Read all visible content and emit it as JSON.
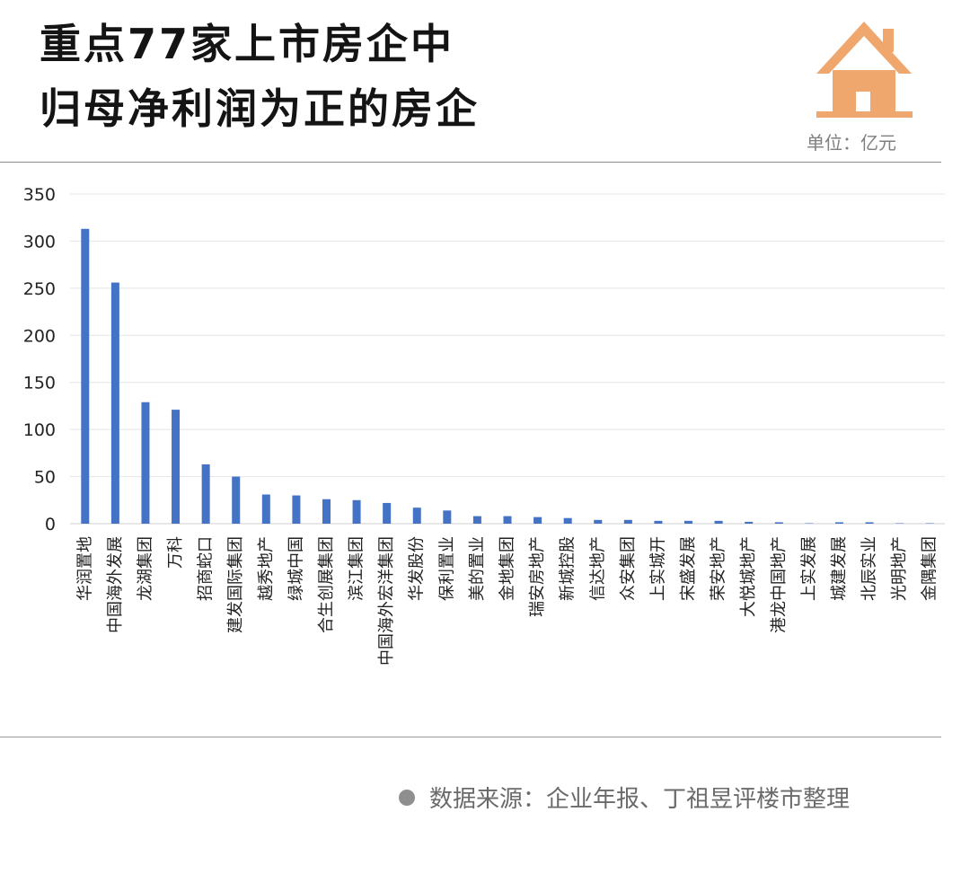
{
  "title": {
    "line1": "重点77家上市房企中",
    "line2": "归母净利润为正的房企"
  },
  "unit_label": "单位：亿元",
  "source": "数据来源：企业年报、丁祖昱评楼市整理",
  "logo": {
    "icon": "house-icon",
    "color": "#f0a76d"
  },
  "chart_data": {
    "type": "bar",
    "title": "",
    "xlabel": "",
    "ylabel": "",
    "ylim": [
      0,
      350
    ],
    "yticks": [
      0,
      50,
      100,
      150,
      200,
      250,
      300,
      350
    ],
    "grid": true,
    "legend": "none",
    "bar_color": "#4472c4",
    "categories": [
      "华润置地",
      "中国海外发展",
      "龙湖集团",
      "万科",
      "招商蛇口",
      "建发国际集团",
      "越秀地产",
      "绿城中国",
      "合生创展集团",
      "滨江集团",
      "中国海外宏洋集团",
      "华发股份",
      "保利置业",
      "美的置业",
      "金地集团",
      "瑞安房地产",
      "新城控股",
      "信达地产",
      "众安集团",
      "上实城开",
      "宋盛发展",
      "荣安地产",
      "大悦城地产",
      "港龙中国地产",
      "上实发展",
      "城建发展",
      "北辰实业",
      "光明地产",
      "金隅集团"
    ],
    "values": [
      313,
      256,
      129,
      121,
      63,
      50,
      31,
      30,
      26,
      25,
      22,
      17,
      14,
      8,
      8,
      7,
      6,
      4,
      4,
      3,
      3,
      3,
      2,
      1.5,
      0.5,
      1.5,
      1.5,
      0.5,
      0.5
    ]
  }
}
